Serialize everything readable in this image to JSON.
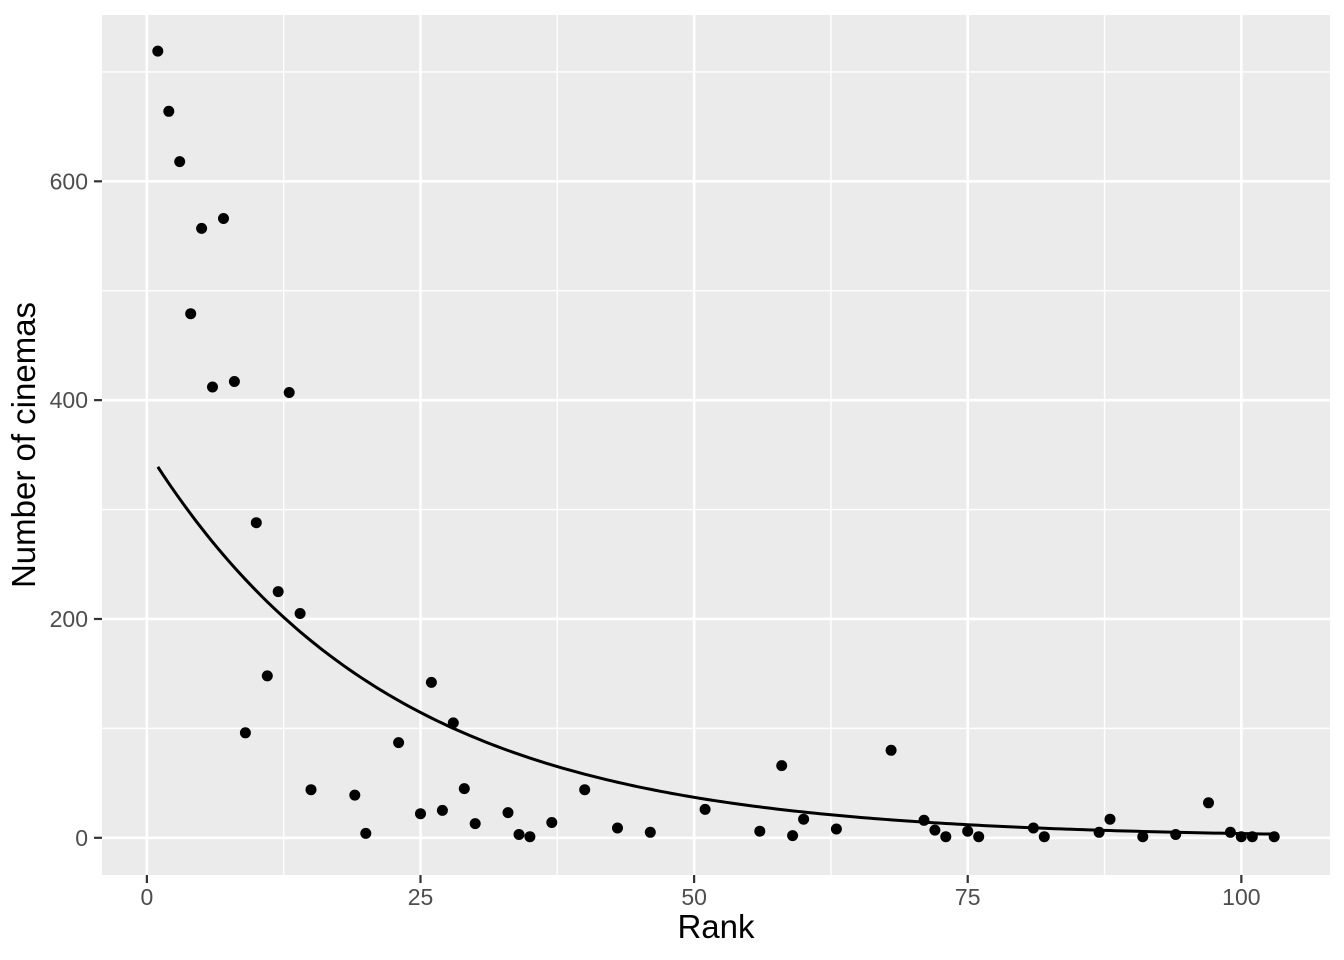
{
  "chart_data": {
    "type": "scatter",
    "title": "",
    "xlabel": "Rank",
    "ylabel": "Number of cinemas",
    "x_ticks": [
      0,
      25,
      50,
      75,
      100
    ],
    "x_minor_ticks": [
      12.5,
      37.5,
      62.5,
      87.5
    ],
    "y_ticks": [
      0,
      200,
      400,
      600
    ],
    "y_minor_ticks": [
      100,
      300,
      500,
      700
    ],
    "xlim": [
      -4.1,
      108.1
    ],
    "ylim": [
      -34,
      752
    ],
    "grid": "major+minor",
    "legend": "none",
    "points": [
      [
        1,
        719
      ],
      [
        2,
        664
      ],
      [
        3,
        618
      ],
      [
        4,
        479
      ],
      [
        5,
        557
      ],
      [
        6,
        412
      ],
      [
        7,
        566
      ],
      [
        8,
        417
      ],
      [
        9,
        96
      ],
      [
        10,
        288
      ],
      [
        11,
        148
      ],
      [
        12,
        225
      ],
      [
        13,
        407
      ],
      [
        14,
        205
      ],
      [
        15,
        44
      ],
      [
        19,
        39
      ],
      [
        20,
        4
      ],
      [
        23,
        87
      ],
      [
        25,
        22
      ],
      [
        26,
        142
      ],
      [
        27,
        25
      ],
      [
        28,
        105
      ],
      [
        29,
        45
      ],
      [
        30,
        13
      ],
      [
        33,
        23
      ],
      [
        34,
        3
      ],
      [
        35,
        1
      ],
      [
        37,
        14
      ],
      [
        40,
        44
      ],
      [
        43,
        9
      ],
      [
        46,
        5
      ],
      [
        51,
        26
      ],
      [
        56,
        6
      ],
      [
        58,
        66
      ],
      [
        59,
        2
      ],
      [
        60,
        17
      ],
      [
        63,
        8
      ],
      [
        68,
        80
      ],
      [
        71,
        16
      ],
      [
        72,
        7
      ],
      [
        73,
        1
      ],
      [
        75,
        6
      ],
      [
        76,
        1
      ],
      [
        81,
        9
      ],
      [
        82,
        1
      ],
      [
        87,
        5
      ],
      [
        88,
        17
      ],
      [
        91,
        1
      ],
      [
        94,
        3
      ],
      [
        97,
        32
      ],
      [
        99,
        5
      ],
      [
        100,
        1
      ],
      [
        101,
        1
      ],
      [
        103,
        1
      ]
    ],
    "trend_curve": {
      "type": "exponential_decay",
      "formula": "y = 339 * exp(-0.0452 * (x - 1))",
      "y_start": 339,
      "decay_rate": 0.0452,
      "x_start": 1,
      "x_end": 103
    },
    "colors": {
      "panel_background": "#EBEBEB",
      "gridline": "#FFFFFF",
      "point": "#000000",
      "curve": "#000000",
      "tick_mark": "#333333",
      "tick_label": "#4D4D4D",
      "axis_title": "#000000"
    }
  }
}
